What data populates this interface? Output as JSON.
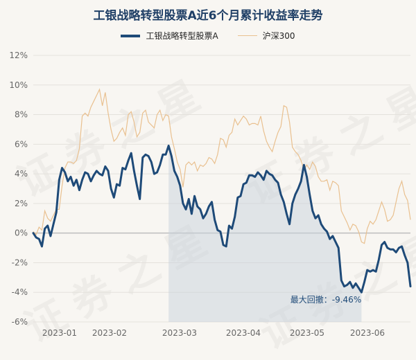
{
  "chart_data": {
    "type": "line",
    "title": "工银战略转型股票A近6个月累计收益率走势",
    "x_tick_labels": [
      "2023-01",
      "2023-02",
      "2023-03",
      "2023-04",
      "2023-05",
      "2023-06"
    ],
    "y_tick_labels": [
      "12%",
      "10%",
      "8%",
      "6%",
      "4%",
      "2%",
      "0%",
      "-2%",
      "-4%",
      "-6%"
    ],
    "ylim": [
      -6,
      12
    ],
    "legend_position": "top-center",
    "grid": true,
    "annotation": "最大回撤：-9.46%",
    "series": [
      {
        "name": "工银战略转型股票A",
        "color": "#1e4a78",
        "values": [
          0.0,
          -0.3,
          -0.4,
          -0.9,
          0.3,
          0.5,
          -0.2,
          0.6,
          1.4,
          3.6,
          4.4,
          4.1,
          3.5,
          3.8,
          3.2,
          3.6,
          2.9,
          3.6,
          4.1,
          4.0,
          3.5,
          3.9,
          4.2,
          4.0,
          3.9,
          4.5,
          4.2,
          3.0,
          2.4,
          3.3,
          3.2,
          4.4,
          4.3,
          4.9,
          5.4,
          4.2,
          3.2,
          2.3,
          5.1,
          5.3,
          5.2,
          4.8,
          4.0,
          4.1,
          4.6,
          5.3,
          5.3,
          5.9,
          5.2,
          4.2,
          3.8,
          3.2,
          2.0,
          1.6,
          2.3,
          1.3,
          2.5,
          1.8,
          1.6,
          1.0,
          1.3,
          1.8,
          2.1,
          0.9,
          0.2,
          0.1,
          -0.8,
          -0.9,
          0.5,
          0.3,
          1.1,
          2.4,
          2.5,
          3.3,
          3.4,
          3.9,
          3.9,
          3.8,
          4.1,
          3.9,
          3.6,
          4.2,
          4.0,
          3.9,
          3.6,
          3.4,
          2.6,
          2.1,
          1.3,
          0.6,
          2.0,
          2.6,
          3.0,
          3.5,
          4.6,
          3.8,
          2.6,
          1.5,
          1.0,
          1.2,
          0.6,
          0.3,
          0.1,
          -0.4,
          -0.2,
          -0.6,
          -1.0,
          -3.2,
          -3.6,
          -3.5,
          -3.3,
          -3.7,
          -3.4,
          -3.7,
          -4.0,
          -3.3,
          -2.5,
          -2.6,
          -2.5,
          -2.6,
          -1.8,
          -0.8,
          -0.6,
          -1.0,
          -1.1,
          -1.1,
          -1.3,
          -1.0,
          -0.9,
          -1.5,
          -2.0,
          -3.6
        ]
      },
      {
        "name": "沪深300",
        "color": "#e9c08f",
        "values": [
          0.1,
          -0.1,
          0.4,
          0.2,
          1.5,
          1.0,
          0.8,
          1.2,
          1.6,
          1.6,
          3.2,
          4.4,
          4.8,
          4.8,
          4.7,
          4.9,
          5.7,
          7.9,
          8.1,
          7.9,
          8.5,
          8.9,
          9.3,
          9.7,
          8.6,
          9.5,
          8.1,
          7.0,
          6.2,
          6.4,
          6.8,
          7.1,
          6.6,
          8.0,
          8.2,
          7.5,
          6.5,
          6.8,
          8.1,
          8.3,
          7.5,
          7.3,
          7.1,
          8.0,
          8.3,
          7.6,
          8.0,
          7.9,
          6.5,
          5.7,
          4.8,
          4.3,
          3.1,
          4.6,
          4.8,
          4.6,
          4.8,
          4.2,
          4.6,
          4.5,
          4.7,
          5.1,
          5.0,
          4.7,
          5.3,
          6.4,
          6.3,
          5.8,
          6.6,
          6.8,
          7.7,
          7.3,
          7.6,
          7.9,
          7.7,
          7.3,
          7.4,
          7.4,
          7.3,
          7.9,
          6.9,
          6.2,
          5.8,
          5.5,
          6.2,
          6.8,
          7.2,
          8.6,
          8.5,
          7.5,
          5.8,
          5.5,
          5.3,
          4.9,
          4.3,
          4.6,
          4.3,
          4.8,
          4.5,
          3.8,
          3.5,
          3.5,
          3.6,
          2.9,
          3.5,
          3.4,
          3.2,
          1.5,
          1.1,
          0.7,
          0.2,
          0.6,
          0.5,
          0.1,
          -0.6,
          -0.7,
          0.3,
          0.8,
          0.6,
          0.9,
          1.5,
          2.1,
          1.6,
          0.8,
          0.9,
          1.2,
          2.1,
          3.0,
          3.5,
          2.6,
          2.2,
          0.9
        ]
      }
    ]
  }
}
